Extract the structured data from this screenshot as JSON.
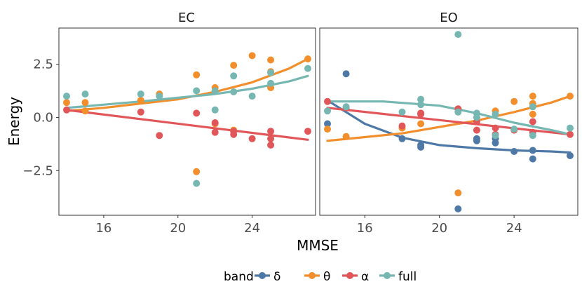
{
  "chart_data": {
    "type": "scatter",
    "xlabel": "MMSE",
    "ylabel": "Energy",
    "xlim": [
      13.5,
      27.5
    ],
    "ylim": [
      -4.6,
      4.2
    ],
    "x_ticks": [
      16,
      20,
      24
    ],
    "x_tick_labels": [
      "16",
      "20",
      "24"
    ],
    "y_ticks": [
      2.5,
      0.0,
      -2.5
    ],
    "y_tick_labels": [
      "2.5",
      "0.0",
      "−2.5"
    ],
    "legend": {
      "title": "band",
      "placement": "bottom",
      "entries": [
        {
          "key": "delta",
          "label": "δ",
          "color": "#4e79a7"
        },
        {
          "key": "theta",
          "label": "θ",
          "color": "#f28e2b"
        },
        {
          "key": "alpha",
          "label": "α",
          "color": "#e15759"
        },
        {
          "key": "full",
          "label": "full",
          "color": "#76b7b2"
        }
      ]
    },
    "panels": [
      {
        "title": "EC",
        "series": [
          {
            "name": "theta",
            "points": [
              [
                14,
                0.7
              ],
              [
                15,
                0.7
              ],
              [
                15,
                0.3
              ],
              [
                18,
                0.8
              ],
              [
                19,
                1.1
              ],
              [
                21,
                2.0
              ],
              [
                21,
                -2.55
              ],
              [
                22,
                1.4
              ],
              [
                22,
                -0.3
              ],
              [
                23,
                2.45
              ],
              [
                23,
                -0.6
              ],
              [
                24,
                2.9
              ],
              [
                25,
                2.7
              ],
              [
                25,
                2.15
              ],
              [
                25,
                1.4
              ],
              [
                27,
                2.75
              ]
            ],
            "fit": [
              [
                14,
                0.3
              ],
              [
                16,
                0.45
              ],
              [
                18,
                0.65
              ],
              [
                20,
                0.85
              ],
              [
                22,
                1.2
              ],
              [
                24,
                1.65
              ],
              [
                26,
                2.3
              ],
              [
                27,
                2.75
              ]
            ]
          },
          {
            "name": "alpha",
            "points": [
              [
                14,
                0.35
              ],
              [
                18,
                0.25
              ],
              [
                19,
                -0.85
              ],
              [
                21,
                0.2
              ],
              [
                22,
                -0.25
              ],
              [
                22,
                -0.7
              ],
              [
                23,
                -0.65
              ],
              [
                23,
                -0.8
              ],
              [
                24,
                -1.0
              ],
              [
                25,
                -0.65
              ],
              [
                25,
                -1.0
              ],
              [
                25,
                -1.3
              ],
              [
                27,
                -0.65
              ]
            ],
            "fit": [
              [
                14,
                0.35
              ],
              [
                27,
                -1.05
              ]
            ]
          },
          {
            "name": "full",
            "points": [
              [
                14,
                1.0
              ],
              [
                15,
                1.1
              ],
              [
                18,
                1.1
              ],
              [
                19,
                1.0
              ],
              [
                21,
                1.25
              ],
              [
                21,
                -3.1
              ],
              [
                22,
                1.25
              ],
              [
                22,
                0.35
              ],
              [
                23,
                1.95
              ],
              [
                23,
                1.2
              ],
              [
                24,
                1.0
              ],
              [
                25,
                1.6
              ],
              [
                25,
                2.1
              ],
              [
                27,
                2.3
              ]
            ],
            "fit": [
              [
                14,
                0.45
              ],
              [
                18,
                0.75
              ],
              [
                22,
                1.1
              ],
              [
                24,
                1.35
              ],
              [
                26,
                1.7
              ],
              [
                27,
                1.95
              ]
            ]
          }
        ]
      },
      {
        "title": "EO",
        "series": [
          {
            "name": "delta",
            "points": [
              [
                14,
                -0.3
              ],
              [
                15,
                2.05
              ],
              [
                18,
                -1.0
              ],
              [
                19,
                -1.3
              ],
              [
                19,
                -1.4
              ],
              [
                21,
                -4.3
              ],
              [
                22,
                -1.0
              ],
              [
                22,
                -1.1
              ],
              [
                23,
                -1.2
              ],
              [
                23,
                -1.0
              ],
              [
                24,
                -1.6
              ],
              [
                25,
                -1.55
              ],
              [
                25,
                -1.95
              ],
              [
                27,
                -1.8
              ]
            ],
            "fit": [
              [
                14,
                0.8
              ],
              [
                16,
                -0.3
              ],
              [
                18,
                -0.95
              ],
              [
                20,
                -1.3
              ],
              [
                22,
                -1.45
              ],
              [
                24,
                -1.55
              ],
              [
                26,
                -1.6
              ],
              [
                27,
                -1.65
              ]
            ]
          },
          {
            "name": "theta",
            "points": [
              [
                14,
                -0.55
              ],
              [
                15,
                -0.9
              ],
              [
                18,
                -0.5
              ],
              [
                19,
                -0.3
              ],
              [
                21,
                0.4
              ],
              [
                21,
                -3.55
              ],
              [
                22,
                -0.6
              ],
              [
                23,
                0.3
              ],
              [
                24,
                0.75
              ],
              [
                25,
                1.0
              ],
              [
                25,
                0.65
              ],
              [
                25,
                0.15
              ],
              [
                27,
                1.0
              ]
            ],
            "fit": [
              [
                14,
                -1.1
              ],
              [
                18,
                -0.75
              ],
              [
                22,
                -0.15
              ],
              [
                24,
                0.25
              ],
              [
                26,
                0.7
              ],
              [
                27,
                1.0
              ]
            ]
          },
          {
            "name": "alpha",
            "points": [
              [
                14,
                0.75
              ],
              [
                15,
                0.45
              ],
              [
                18,
                -0.4
              ],
              [
                19,
                0.2
              ],
              [
                19,
                0.15
              ],
              [
                21,
                0.4
              ],
              [
                22,
                -0.2
              ],
              [
                22,
                -0.6
              ],
              [
                23,
                -0.5
              ],
              [
                23,
                -0.8
              ],
              [
                24,
                -0.6
              ],
              [
                25,
                -0.2
              ],
              [
                25,
                -0.7
              ],
              [
                27,
                -0.8
              ]
            ],
            "fit": [
              [
                14,
                0.45
              ],
              [
                27,
                -0.8
              ]
            ]
          },
          {
            "name": "full",
            "points": [
              [
                14,
                0.3
              ],
              [
                15,
                0.5
              ],
              [
                18,
                0.25
              ],
              [
                19,
                0.6
              ],
              [
                19,
                0.85
              ],
              [
                21,
                3.9
              ],
              [
                21,
                0.25
              ],
              [
                22,
                0.2
              ],
              [
                22,
                0.0
              ],
              [
                23,
                0.15
              ],
              [
                23,
                -0.85
              ],
              [
                24,
                -0.55
              ],
              [
                25,
                0.5
              ],
              [
                25,
                -0.85
              ],
              [
                27,
                -0.5
              ]
            ],
            "fit": [
              [
                14,
                0.75
              ],
              [
                17,
                0.75
              ],
              [
                20,
                0.55
              ],
              [
                22,
                0.2
              ],
              [
                24,
                -0.25
              ],
              [
                26,
                -0.6
              ],
              [
                27,
                -0.8
              ]
            ]
          }
        ]
      }
    ]
  }
}
